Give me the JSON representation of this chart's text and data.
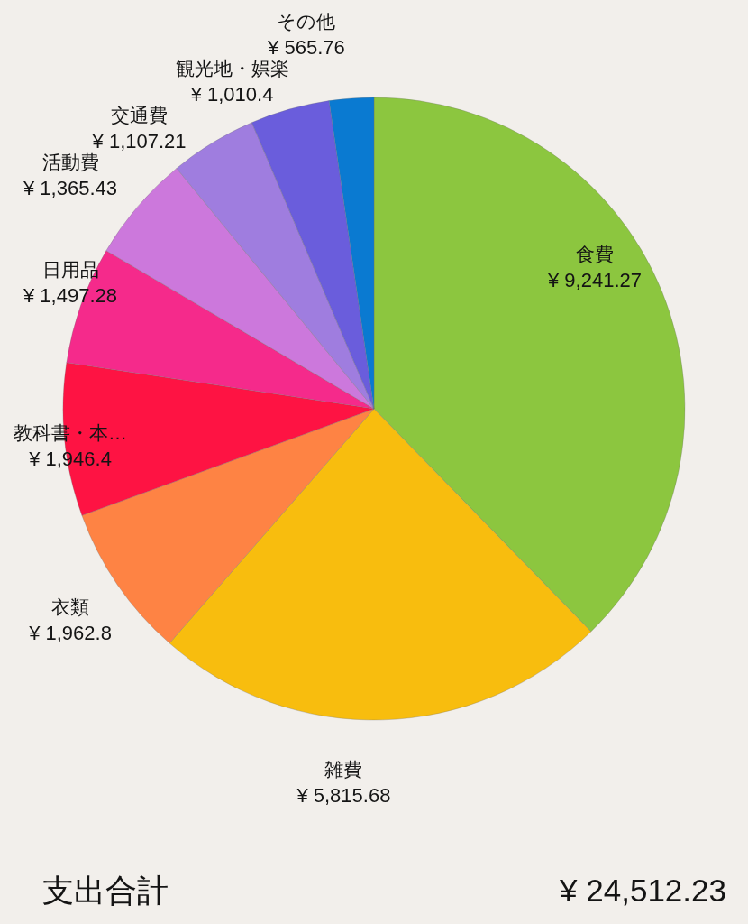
{
  "chart_data": {
    "type": "pie",
    "categories": [
      "食費",
      "雑費",
      "衣類",
      "教科書・本…",
      "日用品",
      "活動費",
      "交通費",
      "観光地・娯楽",
      "その他"
    ],
    "values": [
      9241.27,
      5815.68,
      1962.8,
      1946.4,
      1497.28,
      1365.43,
      1107.21,
      1010.4,
      565.76
    ],
    "colors": [
      "#8cc63f",
      "#f8bd0e",
      "#fe8344",
      "#fe1343",
      "#f52a8b",
      "#cc78dc",
      "#9f7ddf",
      "#6a5ddc",
      "#0a7ad1"
    ],
    "value_labels": [
      "¥ 9,241.27",
      "¥ 5,815.68",
      "¥ 1,962.8",
      "¥ 1,946.4",
      "¥ 1,497.28",
      "¥ 1,365.43",
      "¥ 1,107.21",
      "¥ 1,010.4",
      "¥ 565.76"
    ],
    "annotations": [
      "支出合計",
      "¥ 24,512.23"
    ]
  }
}
